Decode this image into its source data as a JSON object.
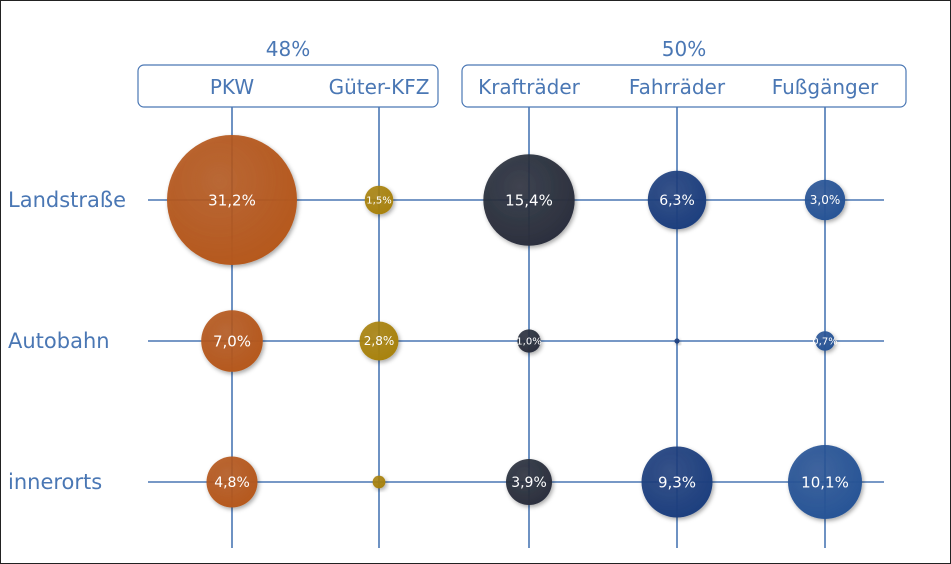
{
  "chart_data": {
    "type": "bubble",
    "groups": [
      {
        "label": "48%",
        "categories": [
          0,
          1
        ]
      },
      {
        "label": "50%",
        "categories": [
          2,
          3,
          4
        ]
      }
    ],
    "categories": [
      "PKW",
      "Güter-KFZ",
      "Krafträder",
      "Fahrräder",
      "Fußgänger"
    ],
    "rows": [
      "Landstraße",
      "Autobahn",
      "innerorts"
    ],
    "series": [
      {
        "name": "PKW",
        "values": [
          31.2,
          7.0,
          4.8
        ],
        "labels": [
          "31,2%",
          "7,0%",
          "4,8%"
        ],
        "color": "#b5581c"
      },
      {
        "name": "Güter-KFZ",
        "values": [
          1.5,
          2.8,
          0.3
        ],
        "labels": [
          "1,5%",
          "2,8%",
          ""
        ],
        "color": "#a8820f"
      },
      {
        "name": "Krafträder",
        "values": [
          15.4,
          1.0,
          3.9
        ],
        "labels": [
          "15,4%",
          "1,0%",
          "3,9%"
        ],
        "color": "#2a2f3d"
      },
      {
        "name": "Fahrräder",
        "values": [
          6.3,
          0.05,
          9.3
        ],
        "labels": [
          "6,3%",
          "",
          "9,3%"
        ],
        "color": "#1d3f7e"
      },
      {
        "name": "Fußgänger",
        "values": [
          3.0,
          0.7,
          10.1
        ],
        "labels": [
          "3,0%",
          "0,7%",
          "10,1%"
        ],
        "color": "#285496"
      }
    ],
    "unit": "%"
  }
}
